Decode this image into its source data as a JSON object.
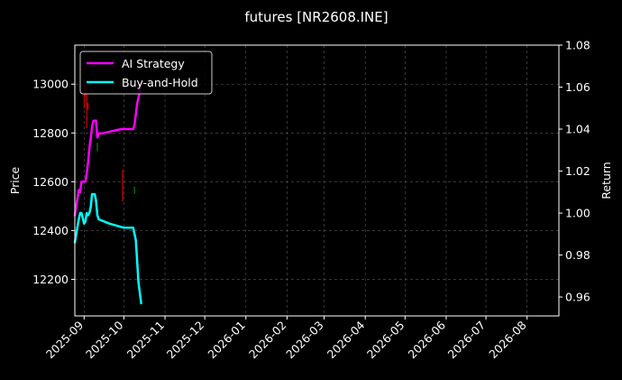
{
  "chart_data": {
    "type": "line",
    "title": "futures [NR2608.INE]",
    "ylabel": "Price",
    "y2label": "Return",
    "xlabel": "",
    "xlim": [
      "2025-08-25",
      "2026-08-25"
    ],
    "ylim": [
      12050,
      13160
    ],
    "y2lim": [
      0.951,
      1.08
    ],
    "x_ticks": [
      "2025-09",
      "2025-10",
      "2025-11",
      "2025-12",
      "2026-01",
      "2026-02",
      "2026-03",
      "2026-04",
      "2026-05",
      "2026-06",
      "2026-07",
      "2026-08"
    ],
    "x_tick_dates": [
      "2025-09-01",
      "2025-10-01",
      "2025-11-01",
      "2025-12-01",
      "2026-01-01",
      "2026-02-01",
      "2026-03-01",
      "2026-04-01",
      "2026-05-01",
      "2026-06-01",
      "2026-07-01",
      "2026-08-01"
    ],
    "y_ticks": [
      12200,
      12400,
      12600,
      12800,
      13000
    ],
    "y2_ticks": [
      "0.96",
      "0.98",
      "1.00",
      "1.02",
      "1.04",
      "1.06",
      "1.08"
    ],
    "y2_tick_values": [
      0.96,
      0.98,
      1.0,
      1.02,
      1.04,
      1.06,
      1.08
    ],
    "grid": true,
    "legend_position": "top-left",
    "candles": [
      {
        "date": "2025-09-01",
        "low": 12900,
        "high": 13020,
        "color": "#ff0000"
      },
      {
        "date": "2025-09-02",
        "low": 12950,
        "high": 13000,
        "color": "#ff0000"
      },
      {
        "date": "2025-09-03",
        "low": 12820,
        "high": 12960,
        "color": "#ff0000"
      },
      {
        "date": "2025-09-04",
        "low": 12895,
        "high": 12925,
        "color": "#ff0000"
      },
      {
        "date": "2025-09-11",
        "low": 12725,
        "high": 12760,
        "color": "#00a000"
      },
      {
        "date": "2025-09-30",
        "low": 12520,
        "high": 12650,
        "color": "#ff0000"
      },
      {
        "date": "2025-10-09",
        "low": 12550,
        "high": 12580,
        "color": "#00a000"
      }
    ],
    "series": [
      {
        "name": "AI Strategy",
        "color": "#ff00ff",
        "axis": "right",
        "x": [
          "2025-08-25",
          "2025-08-28",
          "2025-08-29",
          "2025-08-30",
          "2025-09-01",
          "2025-09-02",
          "2025-09-03",
          "2025-09-04",
          "2025-09-05",
          "2025-09-06",
          "2025-09-07",
          "2025-09-08",
          "2025-09-09",
          "2025-09-10",
          "2025-09-11",
          "2025-09-12",
          "2025-09-15",
          "2025-09-22",
          "2025-09-29",
          "2025-10-08",
          "2025-10-09",
          "2025-10-10",
          "2025-10-11",
          "2025-10-12",
          "2025-10-13",
          "2025-10-14"
        ],
        "y": [
          0.999,
          1.011,
          1.01,
          1.015,
          1.015,
          1.015,
          1.019,
          1.024,
          1.031,
          1.036,
          1.041,
          1.044,
          1.044,
          1.044,
          1.036,
          1.038,
          1.038,
          1.039,
          1.04,
          1.04,
          1.042,
          1.047,
          1.052,
          1.055,
          1.058,
          1.062
        ]
      },
      {
        "name": "Buy-and-Hold",
        "color": "#00ffff",
        "axis": "right",
        "x": [
          "2025-08-25",
          "2025-08-28",
          "2025-08-29",
          "2025-08-30",
          "2025-09-01",
          "2025-09-02",
          "2025-09-03",
          "2025-09-04",
          "2025-09-05",
          "2025-09-06",
          "2025-09-07",
          "2025-09-08",
          "2025-09-09",
          "2025-09-10",
          "2025-09-11",
          "2025-09-12",
          "2025-09-20",
          "2025-10-01",
          "2025-10-08",
          "2025-10-10",
          "2025-10-12",
          "2025-10-14"
        ],
        "y": [
          0.986,
          0.997,
          1.0,
          1.0,
          0.995,
          0.996,
          1.0,
          0.999,
          1.0,
          1.003,
          1.009,
          1.009,
          1.009,
          1.006,
          0.999,
          0.997,
          0.995,
          0.993,
          0.993,
          0.987,
          0.967,
          0.957
        ]
      }
    ]
  }
}
